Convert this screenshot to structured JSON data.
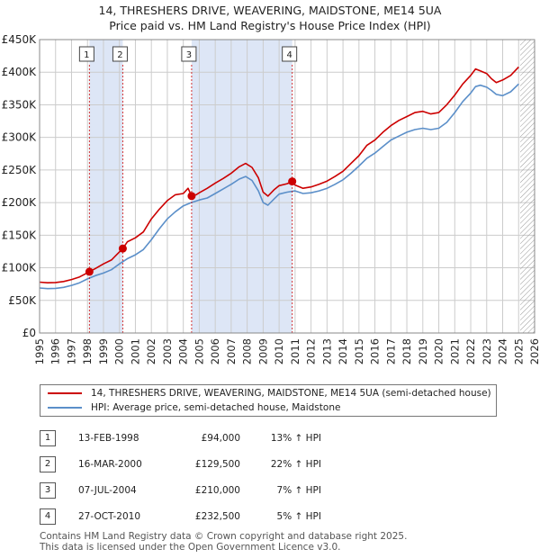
{
  "title_line1": "14, THRESHERS DRIVE, WEAVERING, MAIDSTONE, ME14 5UA",
  "title_line2": "Price paid vs. HM Land Registry's House Price Index (HPI)",
  "colors": {
    "property_line": "#cc0000",
    "hpi_line": "#5b8fc9",
    "shade": "#dde6f6",
    "grid": "#cccccc",
    "marker": "#cc0000"
  },
  "chart_data": {
    "type": "line",
    "title": "14, THRESHERS DRIVE, WEAVERING, MAIDSTONE, ME14 5UA — Price paid vs. HM Land Registry's House Price Index (HPI)",
    "xlim": [
      1995,
      2026
    ],
    "ylim": [
      0,
      450000
    ],
    "x_ticks": [
      1995,
      1996,
      1997,
      1998,
      1999,
      2000,
      2001,
      2002,
      2003,
      2004,
      2005,
      2006,
      2007,
      2008,
      2009,
      2010,
      2011,
      2012,
      2013,
      2014,
      2015,
      2016,
      2017,
      2018,
      2019,
      2020,
      2021,
      2022,
      2023,
      2024,
      2025,
      2026
    ],
    "y_ticks": [
      {
        "value": 0,
        "label": "£0"
      },
      {
        "value": 50000,
        "label": "£50K"
      },
      {
        "value": 100000,
        "label": "£100K"
      },
      {
        "value": 150000,
        "label": "£150K"
      },
      {
        "value": 200000,
        "label": "£200K"
      },
      {
        "value": 250000,
        "label": "£250K"
      },
      {
        "value": 300000,
        "label": "£300K"
      },
      {
        "value": 350000,
        "label": "£350K"
      },
      {
        "value": 400000,
        "label": "£400K"
      },
      {
        "value": 450000,
        "label": "£450K"
      }
    ],
    "shaded_ranges": [
      [
        1998.12,
        2000.21
      ],
      [
        2004.52,
        2010.82
      ]
    ],
    "hatched_from": 2025.1,
    "series": [
      {
        "name": "14, THRESHERS DRIVE, WEAVERING, MAIDSTONE, ME14 5UA (semi-detached house)",
        "x": [
          1995,
          1995.5,
          1996,
          1996.5,
          1997,
          1997.5,
          1998.12,
          1998.5,
          1999,
          1999.5,
          2000.21,
          2000.5,
          2001,
          2001.5,
          2002,
          2002.5,
          2003,
          2003.5,
          2004,
          2004.3,
          2004.52,
          2004.8,
          2005,
          2005.5,
          2006,
          2006.5,
          2007,
          2007.5,
          2007.9,
          2008.3,
          2008.7,
          2009,
          2009.3,
          2009.7,
          2010,
          2010.5,
          2010.82,
          2011,
          2011.5,
          2012,
          2012.5,
          2013,
          2013.5,
          2014,
          2014.5,
          2015,
          2015.5,
          2016,
          2016.5,
          2017,
          2017.5,
          2018,
          2018.5,
          2019,
          2019.5,
          2020,
          2020.5,
          2021,
          2021.5,
          2022,
          2022.3,
          2022.6,
          2023,
          2023.3,
          2023.6,
          2024,
          2024.5,
          2025
        ],
        "values": [
          78000,
          77000,
          77500,
          79000,
          82000,
          86000,
          94000,
          99000,
          106000,
          112000,
          129500,
          140000,
          146000,
          155000,
          175000,
          190000,
          203000,
          212000,
          214000,
          222000,
          210000,
          212000,
          215000,
          222000,
          230000,
          237000,
          245000,
          255000,
          260000,
          254000,
          238000,
          216000,
          210000,
          220000,
          226000,
          229000,
          232500,
          227000,
          222000,
          224000,
          228000,
          233000,
          240000,
          248000,
          260000,
          272000,
          288000,
          296000,
          308000,
          318000,
          326000,
          332000,
          338000,
          340000,
          336000,
          338000,
          350000,
          365000,
          382000,
          395000,
          405000,
          402000,
          398000,
          390000,
          384000,
          388000,
          395000,
          408000
        ]
      },
      {
        "name": "HPI: Average price, semi-detached house, Maidstone",
        "x": [
          1995,
          1995.5,
          1996,
          1996.5,
          1997,
          1997.5,
          1998,
          1998.5,
          1999,
          1999.5,
          2000,
          2000.5,
          2001,
          2001.5,
          2002,
          2002.5,
          2003,
          2003.5,
          2004,
          2004.5,
          2005,
          2005.5,
          2006,
          2006.5,
          2007,
          2007.5,
          2007.9,
          2008.3,
          2008.7,
          2009,
          2009.3,
          2009.7,
          2010,
          2010.5,
          2011,
          2011.5,
          2012,
          2012.5,
          2013,
          2013.5,
          2014,
          2014.5,
          2015,
          2015.5,
          2016,
          2016.5,
          2017,
          2017.5,
          2018,
          2018.5,
          2019,
          2019.5,
          2020,
          2020.5,
          2021,
          2021.5,
          2022,
          2022.3,
          2022.6,
          2023,
          2023.3,
          2023.6,
          2024,
          2024.5,
          2025
        ],
        "values": [
          69000,
          68000,
          68500,
          70000,
          73000,
          77000,
          83000,
          88000,
          92000,
          97000,
          106000,
          114000,
          120000,
          128000,
          143000,
          160000,
          175000,
          186000,
          195000,
          200000,
          204000,
          207000,
          214000,
          221000,
          228000,
          236000,
          240000,
          234000,
          218000,
          200000,
          196000,
          206000,
          213000,
          216000,
          218000,
          214000,
          215000,
          218000,
          222000,
          228000,
          235000,
          245000,
          256000,
          268000,
          276000,
          286000,
          296000,
          302000,
          308000,
          312000,
          314000,
          312000,
          314000,
          323000,
          338000,
          355000,
          368000,
          378000,
          380000,
          377000,
          372000,
          366000,
          364000,
          370000,
          382000
        ]
      }
    ],
    "sales": [
      {
        "num": "1",
        "x": 1998.12,
        "value": 94000
      },
      {
        "num": "2",
        "x": 2000.21,
        "value": 129500
      },
      {
        "num": "3",
        "x": 2004.52,
        "value": 210000
      },
      {
        "num": "4",
        "x": 2010.82,
        "value": 232500
      }
    ]
  },
  "legend": {
    "property_label": "14, THRESHERS DRIVE, WEAVERING, MAIDSTONE, ME14 5UA (semi-detached house)",
    "hpi_label": "HPI: Average price, semi-detached house, Maidstone"
  },
  "transactions": [
    {
      "num": "1",
      "date": "13-FEB-1998",
      "price": "£94,000",
      "hpi": "13% ↑ HPI"
    },
    {
      "num": "2",
      "date": "16-MAR-2000",
      "price": "£129,500",
      "hpi": "22% ↑ HPI"
    },
    {
      "num": "3",
      "date": "07-JUL-2004",
      "price": "£210,000",
      "hpi": "7% ↑ HPI"
    },
    {
      "num": "4",
      "date": "27-OCT-2010",
      "price": "£232,500",
      "hpi": "5% ↑ HPI"
    }
  ],
  "footer_line1": "Contains HM Land Registry data © Crown copyright and database right 2025.",
  "footer_line2": "This data is licensed under the Open Government Licence v3.0."
}
